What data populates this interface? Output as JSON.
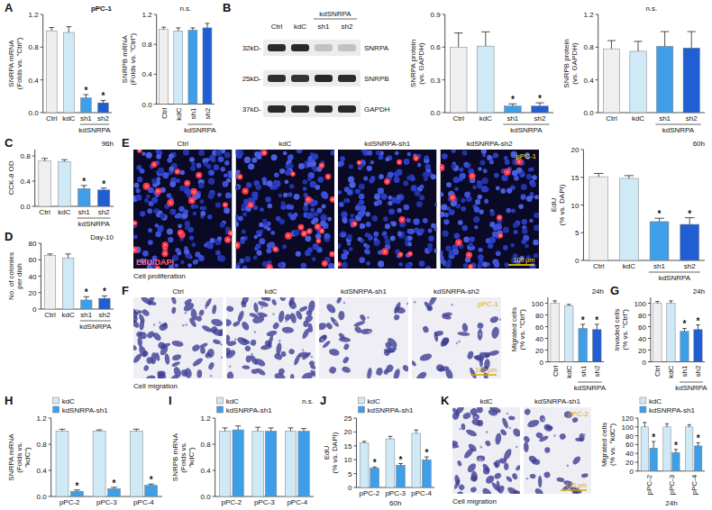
{
  "chart_data": [
    {
      "type": "bar",
      "panel": "A",
      "title": "pPC-1",
      "ylabel": "SNRPA mRNA (Folds vs. \"Ctrl\")",
      "categories": [
        "Ctrl",
        "kdC",
        "sh1",
        "sh2"
      ],
      "group": {
        "label": "kdSNRPA",
        "span": [
          2,
          3
        ]
      },
      "values": [
        1.0,
        0.98,
        0.18,
        0.12
      ],
      "errors": [
        0.04,
        0.07,
        0.04,
        0.03
      ],
      "significance": [
        null,
        null,
        "*",
        "*"
      ],
      "colors": [
        "#efefef",
        "#cfe9f7",
        "#3e9ee8",
        "#1f5fd3"
      ],
      "ylim": [
        0,
        1.2
      ],
      "yticks": [
        {
          "value": 0,
          "label": "0.0"
        },
        0.4,
        0.8,
        1.2
      ]
    },
    {
      "type": "bar",
      "ylabel": "SNRPB mRNA (Folds vs. \"Ctrl\")",
      "annotation": "n.s.",
      "categories": [
        "Ctrl",
        "kdC",
        "sh1",
        "sh2"
      ],
      "group": {
        "label": "kdSNRPA",
        "span": [
          2,
          3
        ]
      },
      "values": [
        1.0,
        0.98,
        0.99,
        1.02
      ],
      "errors": [
        0.03,
        0.04,
        0.03,
        0.06
      ],
      "colors": [
        "#efefef",
        "#cfe9f7",
        "#3e9ee8",
        "#1f5fd3"
      ],
      "ylim": [
        0,
        1.2
      ],
      "yticks": [
        {
          "value": 0,
          "label": "0.0"
        },
        0.4,
        0.8,
        1.2
      ]
    },
    {
      "type": "bar",
      "ylabel": "SNRPA protein (vs. GAPDH)",
      "categories": [
        "Ctrl",
        "kdC",
        "sh1",
        "sh2"
      ],
      "group": {
        "label": "kdSNRPA",
        "span": [
          2,
          3
        ]
      },
      "values": [
        0.6,
        0.61,
        0.06,
        0.06
      ],
      "errors": [
        0.13,
        0.13,
        0.02,
        0.03
      ],
      "significance": [
        null,
        null,
        "*",
        "*"
      ],
      "colors": [
        "#efefef",
        "#cfe9f7",
        "#3e9ee8",
        "#1f5fd3"
      ],
      "ylim": [
        0,
        0.9
      ],
      "yticks": [
        {
          "value": 0,
          "label": "0.0"
        },
        0.3,
        0.6,
        0.9
      ]
    },
    {
      "type": "bar",
      "ylabel": "SNRPB protein (vs. GAPDH)",
      "annotation": "n.s.",
      "categories": [
        "Ctrl",
        "kdC",
        "sh1",
        "sh2"
      ],
      "group": {
        "label": "kdSNRPA",
        "span": [
          2,
          3
        ]
      },
      "values": [
        0.78,
        0.75,
        0.81,
        0.79
      ],
      "errors": [
        0.1,
        0.12,
        0.18,
        0.2
      ],
      "colors": [
        "#efefef",
        "#cfe9f7",
        "#3e9ee8",
        "#1f5fd3"
      ],
      "ylim": [
        0,
        1.2
      ],
      "yticks": [
        {
          "value": 0,
          "label": "0.0"
        },
        0.4,
        0.8,
        1.2
      ]
    },
    {
      "type": "bar",
      "panel": "C",
      "subtitle": "96h",
      "ylabel": "CCK-8 OD",
      "categories": [
        "Ctrl",
        "kdC",
        "sh1",
        "sh2"
      ],
      "group": {
        "label": "kdSNRPA",
        "span": [
          2,
          3
        ]
      },
      "values": [
        0.72,
        0.71,
        0.28,
        0.26
      ],
      "errors": [
        0.04,
        0.03,
        0.05,
        0.03
      ],
      "significance": [
        null,
        null,
        "*",
        "*"
      ],
      "colors": [
        "#efefef",
        "#cfe9f7",
        "#3e9ee8",
        "#1f5fd3"
      ],
      "ylim": [
        0,
        0.9
      ],
      "yticks": [
        {
          "value": 0,
          "label": "0.0"
        },
        0.4,
        0.8
      ]
    },
    {
      "type": "bar",
      "panel": "D",
      "subtitle": "Day-10",
      "ylabel": "No. of colonies per dish",
      "categories": [
        "Ctrl",
        "kdC",
        "sh1",
        "sh2"
      ],
      "group": {
        "label": "kdSNRPA",
        "span": [
          2,
          3
        ]
      },
      "values": [
        65,
        62,
        11,
        13
      ],
      "errors": [
        2,
        5,
        4,
        3
      ],
      "significance": [
        null,
        null,
        "*",
        "*"
      ],
      "colors": [
        "#efefef",
        "#cfe9f7",
        "#3e9ee8",
        "#1f5fd3"
      ],
      "ylim": [
        0,
        80
      ],
      "yticks": [
        0,
        20,
        40,
        60,
        80
      ]
    },
    {
      "type": "bar",
      "subtitle": "60h",
      "ylabel": "EdU (% vs. DAPI)",
      "categories": [
        "Ctrl",
        "kdC",
        "sh1",
        "sh2"
      ],
      "group": {
        "label": "kdSNRPA",
        "span": [
          2,
          3
        ]
      },
      "values": [
        15.1,
        14.8,
        7.0,
        6.5
      ],
      "errors": [
        0.6,
        0.5,
        0.6,
        1.2
      ],
      "significance": [
        null,
        null,
        "*",
        "*"
      ],
      "colors": [
        "#efefef",
        "#cfe9f7",
        "#3e9ee8",
        "#1f5fd3"
      ],
      "ylim": [
        0,
        20
      ],
      "yticks": [
        0,
        5,
        10,
        15,
        20
      ]
    },
    {
      "type": "bar",
      "subtitle": "24h",
      "ylabel": "Migrated cells (% vs. \"Ctrl\")",
      "categories": [
        "Ctrl",
        "kdC",
        "sh1",
        "sh2"
      ],
      "group": {
        "label": "kdSNRPA",
        "span": [
          2,
          3
        ]
      },
      "values": [
        100,
        96,
        57,
        55
      ],
      "errors": [
        4,
        2,
        7,
        9
      ],
      "significance": [
        null,
        null,
        "*",
        "*"
      ],
      "colors": [
        "#efefef",
        "#cfe9f7",
        "#3e9ee8",
        "#1f5fd3"
      ],
      "ylim": [
        0,
        110
      ],
      "yticks": [
        0,
        20,
        40,
        60,
        80,
        100
      ]
    },
    {
      "type": "bar",
      "panel": "G",
      "subtitle": "24h",
      "ylabel": "Invaded cells (% vs. \"Ctrl\")",
      "categories": [
        "Ctrl",
        "kdC",
        "sh1",
        "sh2"
      ],
      "group": {
        "label": "kdSNRPA",
        "span": [
          2,
          3
        ]
      },
      "values": [
        100,
        100,
        52,
        55
      ],
      "errors": [
        3,
        4,
        5,
        8
      ],
      "significance": [
        null,
        null,
        "*",
        "*"
      ],
      "colors": [
        "#efefef",
        "#cfe9f7",
        "#3e9ee8",
        "#1f5fd3"
      ],
      "ylim": [
        0,
        110
      ],
      "yticks": [
        0,
        20,
        40,
        60,
        80,
        100
      ]
    },
    {
      "type": "bar",
      "panel": "H",
      "ylabel": "SNRPA mRNA (Folds vs. \"kdC\")",
      "legend": "top-left",
      "categories": [
        "pPC-2",
        "pPC-3",
        "pPC-4"
      ],
      "series": [
        {
          "name": "kdC",
          "color": "#cfe9f7",
          "values": [
            1.0,
            1.0,
            1.0
          ],
          "errors": [
            0.03,
            0.02,
            0.03
          ]
        },
        {
          "name": "kdSNRPA-sh1",
          "color": "#3e9ee8",
          "values": [
            0.08,
            0.12,
            0.17
          ],
          "errors": [
            0.02,
            0.02,
            0.02
          ],
          "significance": [
            "*",
            "*",
            "*"
          ]
        }
      ],
      "ylim": [
        0,
        1.2
      ],
      "yticks": [
        {
          "value": 0,
          "label": "0.0"
        },
        0.4,
        0.8,
        1.2
      ]
    },
    {
      "type": "bar",
      "panel": "I",
      "ylabel": "SNRPB mRNA (Folds vs. \"kdC\")",
      "legend": "top-left",
      "annotation": "n.s.",
      "categories": [
        "pPC-2",
        "pPC-3",
        "pPC-4"
      ],
      "series": [
        {
          "name": "kdC",
          "color": "#cfe9f7",
          "values": [
            1.0,
            1.0,
            1.0
          ],
          "errors": [
            0.05,
            0.06,
            0.05
          ]
        },
        {
          "name": "kdSNRPA-sh1",
          "color": "#3e9ee8",
          "values": [
            1.02,
            1.0,
            1.0
          ],
          "errors": [
            0.06,
            0.05,
            0.04
          ]
        }
      ],
      "ylim": [
        0,
        1.2
      ],
      "yticks": [
        {
          "value": 0,
          "label": "0.0"
        },
        0.4,
        0.8,
        1.2
      ]
    },
    {
      "type": "bar",
      "panel": "J",
      "ylabel": "EdU (% vs. DAPI)",
      "legend": "top-left",
      "subtitle": "60h",
      "categories": [
        "pPC-2",
        "pPC-3",
        "pPC-4"
      ],
      "series": [
        {
          "name": "kdC",
          "color": "#cfe9f7",
          "values": [
            16,
            17.5,
            19.5
          ],
          "errors": [
            0.6,
            0.9,
            1.2
          ]
        },
        {
          "name": "kdSNRPA-sh1",
          "color": "#3e9ee8",
          "values": [
            7,
            8,
            10
          ],
          "errors": [
            0.4,
            0.6,
            1.0
          ],
          "significance": [
            "*",
            "*",
            "*"
          ]
        }
      ],
      "ylim": [
        0,
        25
      ],
      "yticks": [
        0,
        5,
        10,
        15,
        20,
        25
      ]
    },
    {
      "type": "bar",
      "ylabel": "Migrated cells (% vs. \"kdC\")",
      "legend": "top-left",
      "subtitle": "24h",
      "categories": [
        "pPC-2",
        "pPC-3",
        "pPC-4"
      ],
      "series": [
        {
          "name": "kdC",
          "color": "#cfe9f7",
          "values": [
            100,
            100,
            100
          ],
          "errors": [
            10,
            7,
            5
          ]
        },
        {
          "name": "kdSNRPA-sh1",
          "color": "#3e9ee8",
          "values": [
            52,
            42,
            57
          ],
          "errors": [
            15,
            7,
            7
          ],
          "significance": [
            "*",
            "*",
            "*"
          ]
        }
      ],
      "ylim": [
        0,
        120
      ],
      "yticks": [
        0,
        20,
        40,
        60,
        80,
        100,
        120
      ]
    }
  ],
  "blot": {
    "panel": "B",
    "lanes": [
      "Ctrl",
      "kdC",
      "sh1",
      "sh2"
    ],
    "group": {
      "label": "kdSNRPA",
      "span": [
        2,
        3
      ]
    },
    "rows": [
      {
        "size": "32kD-",
        "protein": "SNRPA"
      },
      {
        "size": "25kD-",
        "protein": "SNRPB"
      },
      {
        "size": "37kD-",
        "protein": "GAPDH"
      }
    ]
  },
  "micrographs": [
    {
      "panel": "E",
      "kind": "fluorescence",
      "titles": [
        "Ctrl",
        "kdC",
        "kdSNRPA-sh1",
        "kdSNRPA-sh2"
      ],
      "cell_line": "pPC-1",
      "stain": "EdU/DAPI",
      "scale_bar": "100 μm",
      "caption": "Cell proliferation"
    },
    {
      "panel": "F",
      "kind": "crystal-violet",
      "titles": [
        "Ctrl",
        "kdC",
        "kdSNRPA-sh1",
        "kdSNRPA-sh2"
      ],
      "cell_line": "pPC-1",
      "scale_bar": "100 μm",
      "caption": "Cell migration"
    },
    {
      "panel": "K",
      "kind": "crystal-violet",
      "titles": [
        "kdC",
        "kdSNRPA-sh1"
      ],
      "cell_line": "pPC-2",
      "scale_bar": "100 μm",
      "caption": "Cell migration"
    }
  ]
}
